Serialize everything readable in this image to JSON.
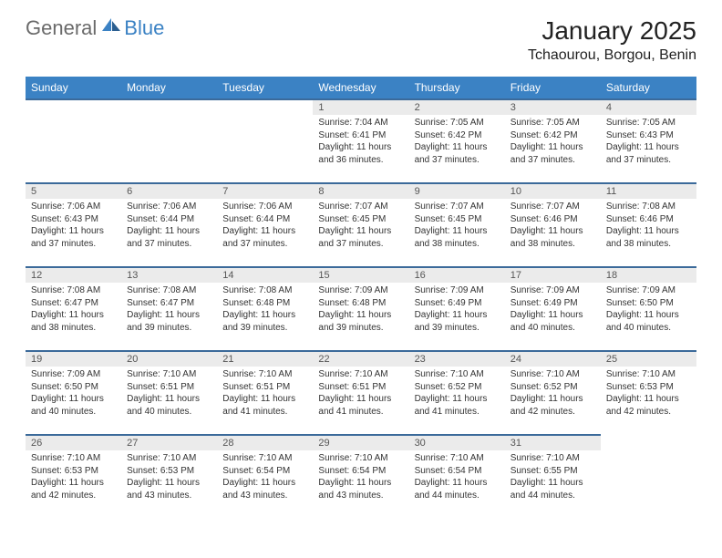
{
  "logo": {
    "general": "General",
    "blue": "Blue"
  },
  "title": "January 2025",
  "location": "Tchaourou, Borgou, Benin",
  "header_color": "#3b82c4",
  "rule_color": "#3b6a9a",
  "daynum_bg": "#ebebeb",
  "weekdays": [
    "Sunday",
    "Monday",
    "Tuesday",
    "Wednesday",
    "Thursday",
    "Friday",
    "Saturday"
  ],
  "weeks": [
    [
      null,
      null,
      null,
      {
        "n": "1",
        "sr": "7:04 AM",
        "ss": "6:41 PM",
        "dl": "11 hours and 36 minutes."
      },
      {
        "n": "2",
        "sr": "7:05 AM",
        "ss": "6:42 PM",
        "dl": "11 hours and 37 minutes."
      },
      {
        "n": "3",
        "sr": "7:05 AM",
        "ss": "6:42 PM",
        "dl": "11 hours and 37 minutes."
      },
      {
        "n": "4",
        "sr": "7:05 AM",
        "ss": "6:43 PM",
        "dl": "11 hours and 37 minutes."
      }
    ],
    [
      {
        "n": "5",
        "sr": "7:06 AM",
        "ss": "6:43 PM",
        "dl": "11 hours and 37 minutes."
      },
      {
        "n": "6",
        "sr": "7:06 AM",
        "ss": "6:44 PM",
        "dl": "11 hours and 37 minutes."
      },
      {
        "n": "7",
        "sr": "7:06 AM",
        "ss": "6:44 PM",
        "dl": "11 hours and 37 minutes."
      },
      {
        "n": "8",
        "sr": "7:07 AM",
        "ss": "6:45 PM",
        "dl": "11 hours and 37 minutes."
      },
      {
        "n": "9",
        "sr": "7:07 AM",
        "ss": "6:45 PM",
        "dl": "11 hours and 38 minutes."
      },
      {
        "n": "10",
        "sr": "7:07 AM",
        "ss": "6:46 PM",
        "dl": "11 hours and 38 minutes."
      },
      {
        "n": "11",
        "sr": "7:08 AM",
        "ss": "6:46 PM",
        "dl": "11 hours and 38 minutes."
      }
    ],
    [
      {
        "n": "12",
        "sr": "7:08 AM",
        "ss": "6:47 PM",
        "dl": "11 hours and 38 minutes."
      },
      {
        "n": "13",
        "sr": "7:08 AM",
        "ss": "6:47 PM",
        "dl": "11 hours and 39 minutes."
      },
      {
        "n": "14",
        "sr": "7:08 AM",
        "ss": "6:48 PM",
        "dl": "11 hours and 39 minutes."
      },
      {
        "n": "15",
        "sr": "7:09 AM",
        "ss": "6:48 PM",
        "dl": "11 hours and 39 minutes."
      },
      {
        "n": "16",
        "sr": "7:09 AM",
        "ss": "6:49 PM",
        "dl": "11 hours and 39 minutes."
      },
      {
        "n": "17",
        "sr": "7:09 AM",
        "ss": "6:49 PM",
        "dl": "11 hours and 40 minutes."
      },
      {
        "n": "18",
        "sr": "7:09 AM",
        "ss": "6:50 PM",
        "dl": "11 hours and 40 minutes."
      }
    ],
    [
      {
        "n": "19",
        "sr": "7:09 AM",
        "ss": "6:50 PM",
        "dl": "11 hours and 40 minutes."
      },
      {
        "n": "20",
        "sr": "7:10 AM",
        "ss": "6:51 PM",
        "dl": "11 hours and 40 minutes."
      },
      {
        "n": "21",
        "sr": "7:10 AM",
        "ss": "6:51 PM",
        "dl": "11 hours and 41 minutes."
      },
      {
        "n": "22",
        "sr": "7:10 AM",
        "ss": "6:51 PM",
        "dl": "11 hours and 41 minutes."
      },
      {
        "n": "23",
        "sr": "7:10 AM",
        "ss": "6:52 PM",
        "dl": "11 hours and 41 minutes."
      },
      {
        "n": "24",
        "sr": "7:10 AM",
        "ss": "6:52 PM",
        "dl": "11 hours and 42 minutes."
      },
      {
        "n": "25",
        "sr": "7:10 AM",
        "ss": "6:53 PM",
        "dl": "11 hours and 42 minutes."
      }
    ],
    [
      {
        "n": "26",
        "sr": "7:10 AM",
        "ss": "6:53 PM",
        "dl": "11 hours and 42 minutes."
      },
      {
        "n": "27",
        "sr": "7:10 AM",
        "ss": "6:53 PM",
        "dl": "11 hours and 43 minutes."
      },
      {
        "n": "28",
        "sr": "7:10 AM",
        "ss": "6:54 PM",
        "dl": "11 hours and 43 minutes."
      },
      {
        "n": "29",
        "sr": "7:10 AM",
        "ss": "6:54 PM",
        "dl": "11 hours and 43 minutes."
      },
      {
        "n": "30",
        "sr": "7:10 AM",
        "ss": "6:54 PM",
        "dl": "11 hours and 44 minutes."
      },
      {
        "n": "31",
        "sr": "7:10 AM",
        "ss": "6:55 PM",
        "dl": "11 hours and 44 minutes."
      },
      null
    ]
  ],
  "labels": {
    "sunrise": "Sunrise:",
    "sunset": "Sunset:",
    "daylight": "Daylight:"
  }
}
